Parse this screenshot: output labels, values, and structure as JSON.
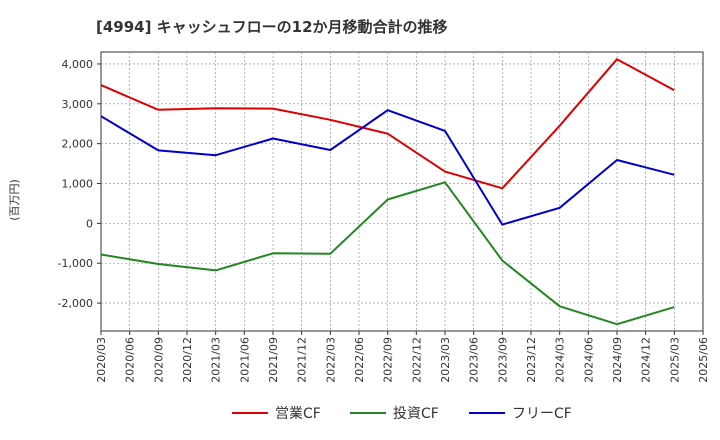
{
  "chart_data": {
    "type": "line",
    "title": "[4994]  キャッシュフローの12か月移動合計の推移",
    "ylabel": "(百万円)",
    "xlabel": "",
    "ylim": [
      -2700,
      4300
    ],
    "yticks": [
      4000,
      3000,
      2000,
      1000,
      0,
      -1000,
      -2000
    ],
    "ytick_labels": [
      "4,000",
      "3,000",
      "2,000",
      "1,000",
      "0",
      "-1,000",
      "-2,000"
    ],
    "categories": [
      "2020/03",
      "2020/06",
      "2020/09",
      "2020/12",
      "2021/03",
      "2021/06",
      "2021/09",
      "2021/12",
      "2022/03",
      "2022/06",
      "2022/09",
      "2022/12",
      "2023/03",
      "2023/06",
      "2023/09",
      "2023/12",
      "2024/03",
      "2024/06",
      "2024/09",
      "2024/12",
      "2025/03",
      "2025/06"
    ],
    "grid": true,
    "legend_position": "bottom",
    "series": [
      {
        "name": "営業CF",
        "color": "#dd0000",
        "values": [
          3470,
          null,
          2850,
          null,
          2890,
          null,
          2880,
          null,
          2600,
          null,
          2250,
          null,
          1300,
          null,
          880,
          null,
          2450,
          null,
          4120,
          null,
          3340,
          null
        ]
      },
      {
        "name": "投資CF",
        "color": "#228822",
        "values": [
          -780,
          null,
          -1020,
          null,
          -1180,
          null,
          -750,
          null,
          -760,
          null,
          600,
          null,
          1030,
          null,
          -930,
          null,
          -2080,
          null,
          -2530,
          null,
          -2100,
          null
        ]
      },
      {
        "name": "フリーCF",
        "color": "#0000cc",
        "values": [
          2690,
          null,
          1830,
          null,
          1710,
          null,
          2130,
          null,
          1840,
          null,
          2840,
          null,
          2320,
          null,
          -30,
          null,
          390,
          null,
          1590,
          null,
          1220,
          null
        ]
      }
    ]
  }
}
